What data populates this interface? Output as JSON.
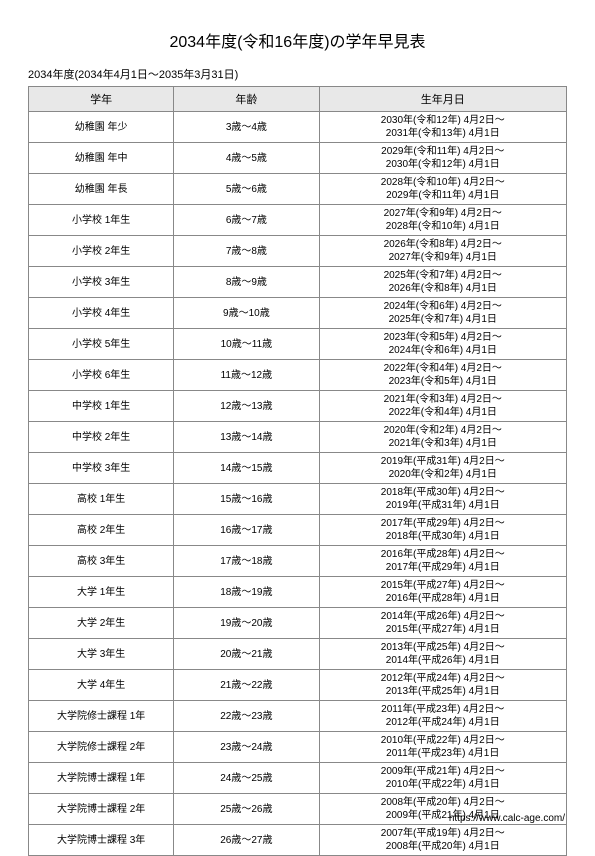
{
  "title": "2034年度(令和16年度)の学年早見表",
  "subtitle": "2034年度(2034年4月1日～2035年3月31日)",
  "columns": {
    "grade": "学年",
    "age": "年齢",
    "dob": "生年月日"
  },
  "rows": [
    {
      "grade": "幼稚園 年少",
      "age": "3歳～4歳",
      "dob1": "2030年(令和12年) 4月2日～",
      "dob2": "2031年(令和13年) 4月1日"
    },
    {
      "grade": "幼稚園 年中",
      "age": "4歳～5歳",
      "dob1": "2029年(令和11年) 4月2日～",
      "dob2": "2030年(令和12年) 4月1日"
    },
    {
      "grade": "幼稚園 年長",
      "age": "5歳～6歳",
      "dob1": "2028年(令和10年) 4月2日～",
      "dob2": "2029年(令和11年) 4月1日"
    },
    {
      "grade": "小学校 1年生",
      "age": "6歳～7歳",
      "dob1": "2027年(令和9年) 4月2日～",
      "dob2": "2028年(令和10年) 4月1日"
    },
    {
      "grade": "小学校 2年生",
      "age": "7歳～8歳",
      "dob1": "2026年(令和8年) 4月2日～",
      "dob2": "2027年(令和9年) 4月1日"
    },
    {
      "grade": "小学校 3年生",
      "age": "8歳～9歳",
      "dob1": "2025年(令和7年) 4月2日～",
      "dob2": "2026年(令和8年) 4月1日"
    },
    {
      "grade": "小学校 4年生",
      "age": "9歳～10歳",
      "dob1": "2024年(令和6年) 4月2日～",
      "dob2": "2025年(令和7年) 4月1日"
    },
    {
      "grade": "小学校 5年生",
      "age": "10歳～11歳",
      "dob1": "2023年(令和5年) 4月2日～",
      "dob2": "2024年(令和6年) 4月1日"
    },
    {
      "grade": "小学校 6年生",
      "age": "11歳～12歳",
      "dob1": "2022年(令和4年) 4月2日～",
      "dob2": "2023年(令和5年) 4月1日"
    },
    {
      "grade": "中学校 1年生",
      "age": "12歳～13歳",
      "dob1": "2021年(令和3年) 4月2日～",
      "dob2": "2022年(令和4年) 4月1日"
    },
    {
      "grade": "中学校 2年生",
      "age": "13歳～14歳",
      "dob1": "2020年(令和2年) 4月2日～",
      "dob2": "2021年(令和3年) 4月1日"
    },
    {
      "grade": "中学校 3年生",
      "age": "14歳～15歳",
      "dob1": "2019年(平成31年) 4月2日～",
      "dob2": "2020年(令和2年) 4月1日"
    },
    {
      "grade": "高校 1年生",
      "age": "15歳～16歳",
      "dob1": "2018年(平成30年) 4月2日～",
      "dob2": "2019年(平成31年) 4月1日"
    },
    {
      "grade": "高校 2年生",
      "age": "16歳～17歳",
      "dob1": "2017年(平成29年) 4月2日～",
      "dob2": "2018年(平成30年) 4月1日"
    },
    {
      "grade": "高校 3年生",
      "age": "17歳～18歳",
      "dob1": "2016年(平成28年) 4月2日～",
      "dob2": "2017年(平成29年) 4月1日"
    },
    {
      "grade": "大学 1年生",
      "age": "18歳～19歳",
      "dob1": "2015年(平成27年) 4月2日～",
      "dob2": "2016年(平成28年) 4月1日"
    },
    {
      "grade": "大学 2年生",
      "age": "19歳～20歳",
      "dob1": "2014年(平成26年) 4月2日～",
      "dob2": "2015年(平成27年) 4月1日"
    },
    {
      "grade": "大学 3年生",
      "age": "20歳～21歳",
      "dob1": "2013年(平成25年) 4月2日～",
      "dob2": "2014年(平成26年) 4月1日"
    },
    {
      "grade": "大学 4年生",
      "age": "21歳～22歳",
      "dob1": "2012年(平成24年) 4月2日～",
      "dob2": "2013年(平成25年) 4月1日"
    },
    {
      "grade": "大学院修士課程 1年",
      "age": "22歳～23歳",
      "dob1": "2011年(平成23年) 4月2日～",
      "dob2": "2012年(平成24年) 4月1日"
    },
    {
      "grade": "大学院修士課程 2年",
      "age": "23歳～24歳",
      "dob1": "2010年(平成22年) 4月2日～",
      "dob2": "2011年(平成23年) 4月1日"
    },
    {
      "grade": "大学院博士課程 1年",
      "age": "24歳～25歳",
      "dob1": "2009年(平成21年) 4月2日～",
      "dob2": "2010年(平成22年) 4月1日"
    },
    {
      "grade": "大学院博士課程 2年",
      "age": "25歳～26歳",
      "dob1": "2008年(平成20年) 4月2日～",
      "dob2": "2009年(平成21年) 4月1日"
    },
    {
      "grade": "大学院博士課程 3年",
      "age": "26歳～27歳",
      "dob1": "2007年(平成19年) 4月2日～",
      "dob2": "2008年(平成20年) 4月1日"
    }
  ],
  "footer": "https://www.calc-age.com/"
}
